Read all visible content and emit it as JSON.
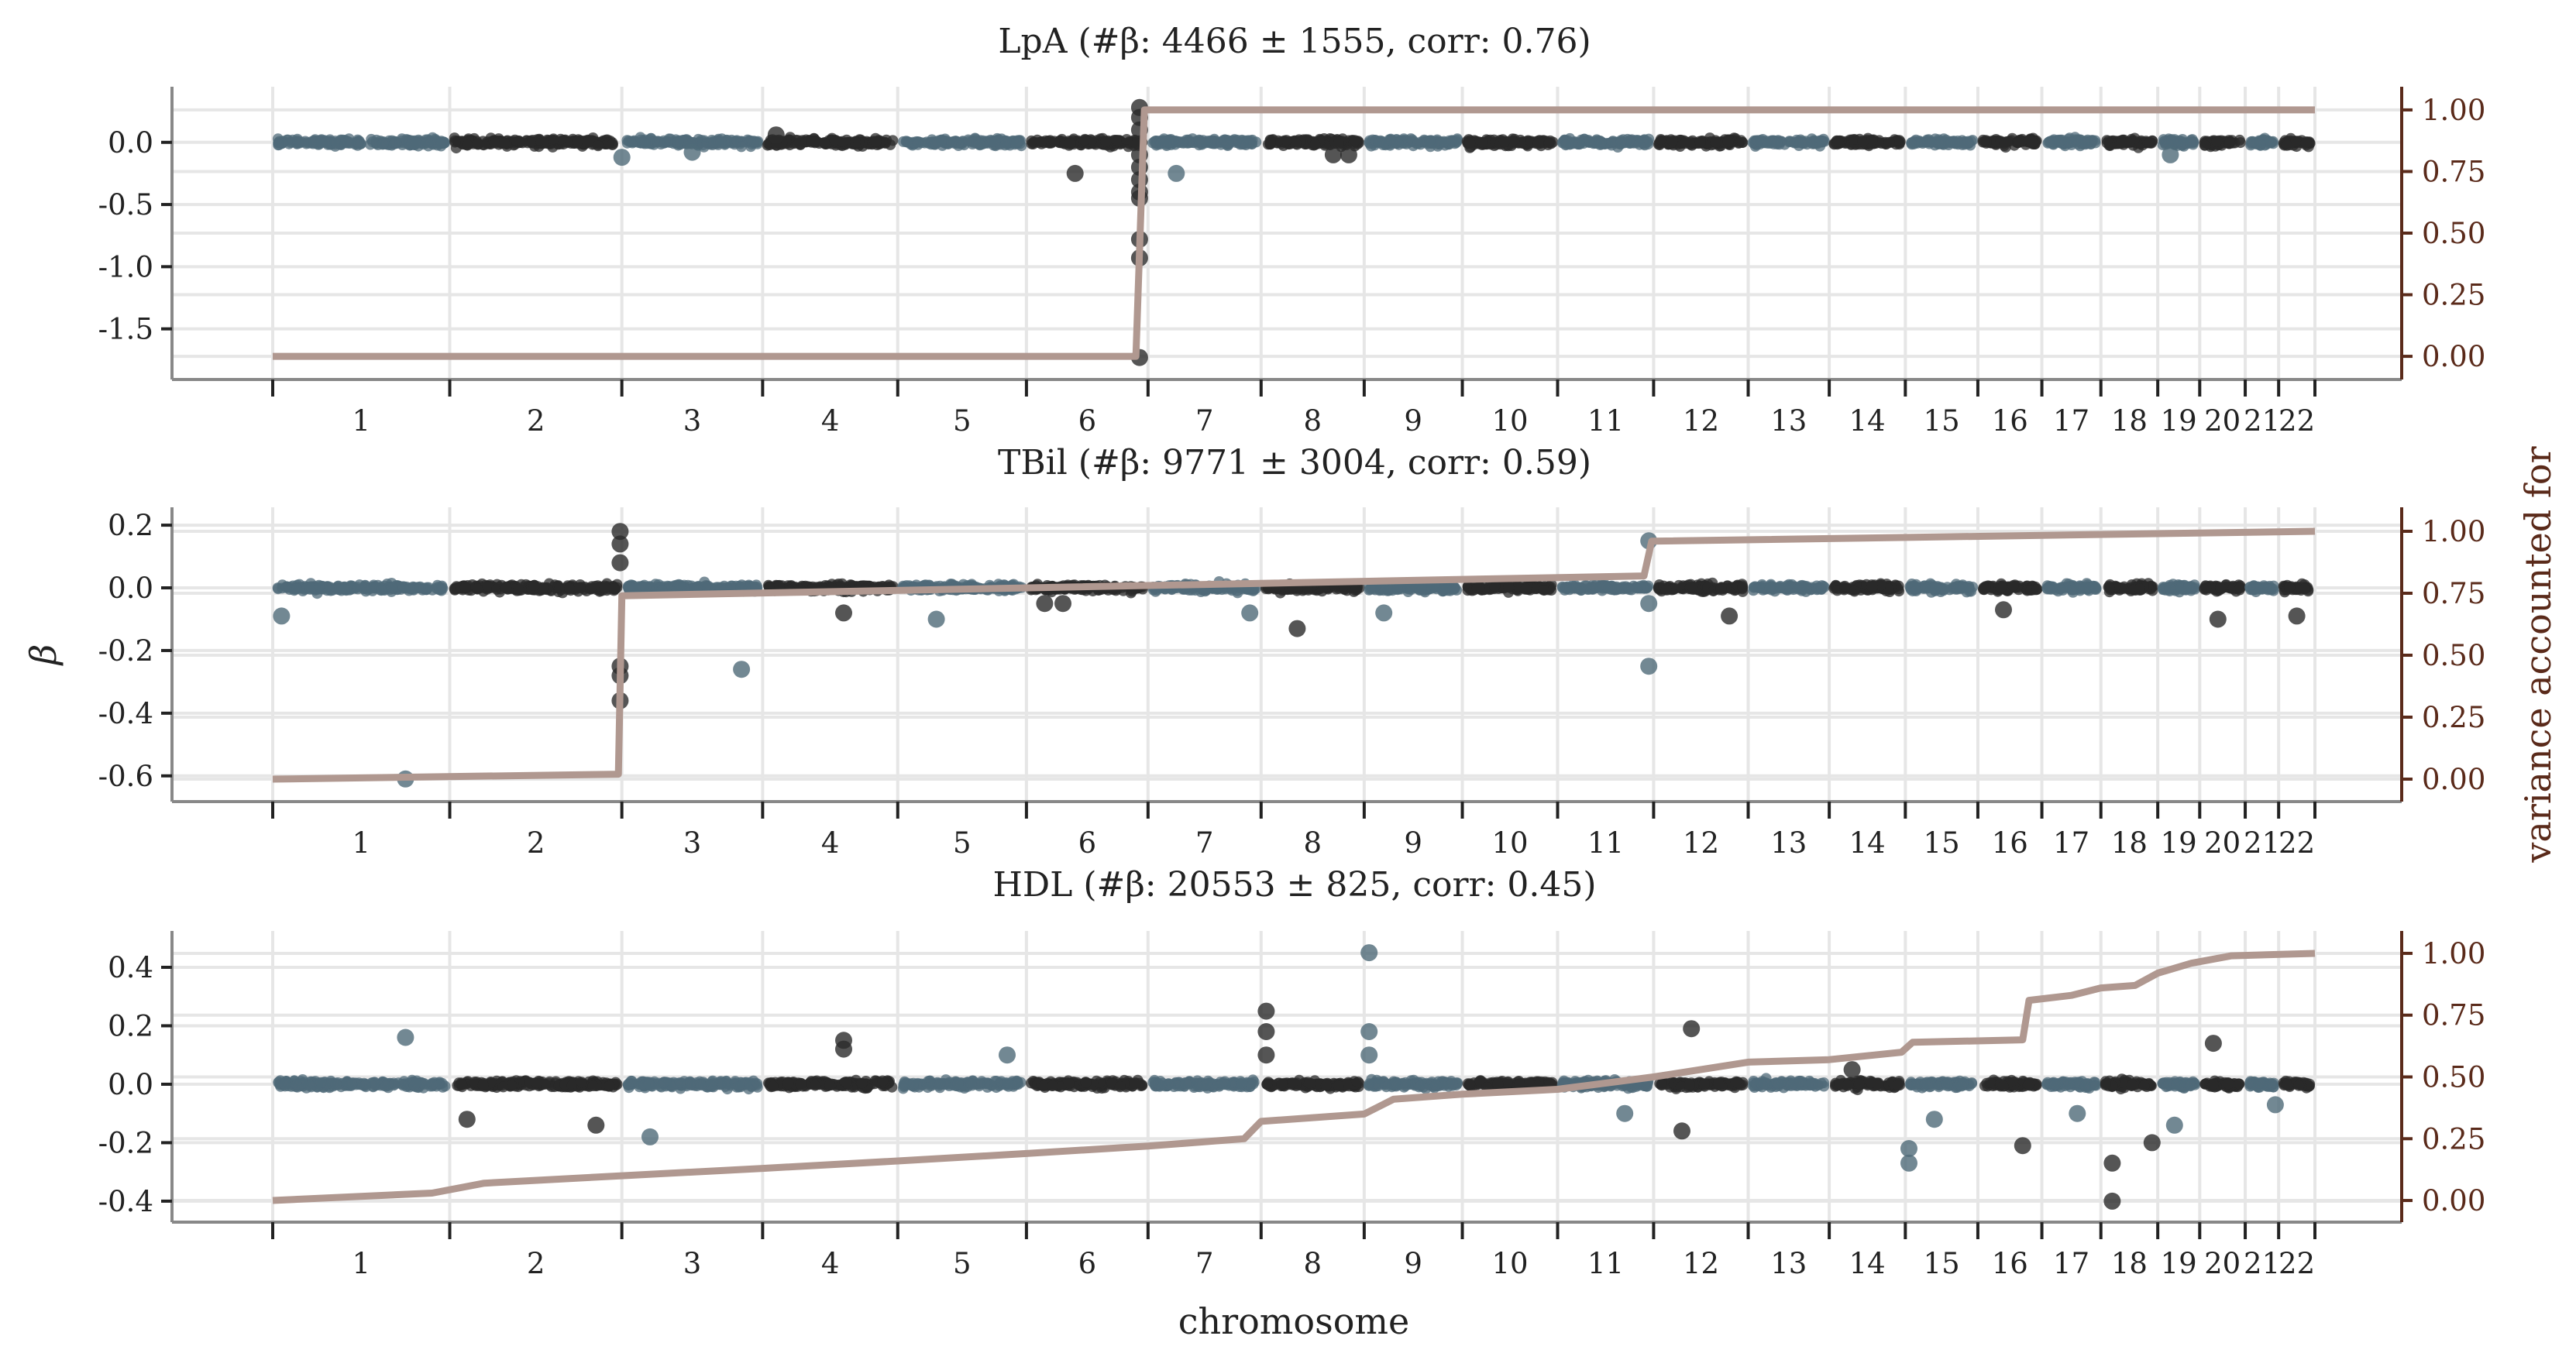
{
  "chart_data": [
    {
      "type": "scatter",
      "title": "LpA    (#β: 4466 ± 1555, corr: 0.76)",
      "trait": "LpA",
      "n_beta": "4466 ± 1555",
      "corr": 0.76,
      "ylim": [
        -1.82,
        0.36
      ],
      "yticks": [
        "0.0",
        "-0.5",
        "-1.0",
        "-1.5"
      ],
      "ytick_values": [
        0.0,
        -0.5,
        -1.0,
        -1.5
      ],
      "right_ylim": [
        -0.05,
        1.05
      ],
      "right_yticks": [
        "1.00",
        "0.75",
        "0.50",
        "0.25",
        "0.00"
      ],
      "right_ytick_values": [
        1.0,
        0.75,
        0.5,
        0.25,
        0.0
      ],
      "outliers": [
        {
          "chrom": 6,
          "pos": 0.93,
          "beta": 0.28
        },
        {
          "chrom": 6,
          "pos": 0.93,
          "beta": 0.2
        },
        {
          "chrom": 6,
          "pos": 0.93,
          "beta": 0.1
        },
        {
          "chrom": 6,
          "pos": 0.93,
          "beta": -0.1
        },
        {
          "chrom": 6,
          "pos": 0.93,
          "beta": -0.2
        },
        {
          "chrom": 6,
          "pos": 0.93,
          "beta": -0.3
        },
        {
          "chrom": 6,
          "pos": 0.93,
          "beta": -0.4
        },
        {
          "chrom": 6,
          "pos": 0.93,
          "beta": -0.45
        },
        {
          "chrom": 6,
          "pos": 0.93,
          "beta": -0.78
        },
        {
          "chrom": 6,
          "pos": 0.93,
          "beta": -0.93
        },
        {
          "chrom": 6,
          "pos": 0.93,
          "beta": -1.73
        },
        {
          "chrom": 6,
          "pos": 0.4,
          "beta": -0.25
        },
        {
          "chrom": 7,
          "pos": 0.25,
          "beta": -0.25
        },
        {
          "chrom": 3,
          "pos": 0.0,
          "beta": -0.12
        },
        {
          "chrom": 3,
          "pos": 0.5,
          "beta": -0.08
        },
        {
          "chrom": 4,
          "pos": 0.1,
          "beta": 0.06
        },
        {
          "chrom": 8,
          "pos": 0.7,
          "beta": -0.1
        },
        {
          "chrom": 8,
          "pos": 0.85,
          "beta": -0.1
        },
        {
          "chrom": 19,
          "pos": 0.3,
          "beta": -0.1
        }
      ],
      "cumulative_variance": [
        {
          "chrom": 1,
          "pos": 0.0,
          "value": 0.0
        },
        {
          "chrom": 6,
          "pos": 0.9,
          "value": 0.0
        },
        {
          "chrom": 6,
          "pos": 0.97,
          "value": 1.0
        },
        {
          "chrom": 22,
          "pos": 1.0,
          "value": 1.0
        }
      ]
    },
    {
      "type": "scatter",
      "title": "TBil    (#β: 9771 ± 3004, corr: 0.59)",
      "trait": "TBil",
      "n_beta": "9771 ± 3004",
      "corr": 0.59,
      "ylim": [
        -0.65,
        0.22
      ],
      "yticks": [
        "0.2",
        "0.0",
        "-0.2",
        "-0.4",
        "-0.6"
      ],
      "ytick_values": [
        0.2,
        0.0,
        -0.2,
        -0.4,
        -0.6
      ],
      "right_ylim": [
        -0.05,
        1.05
      ],
      "right_yticks": [
        "1.00",
        "0.75",
        "0.50",
        "0.25",
        "0.00"
      ],
      "right_ytick_values": [
        1.0,
        0.75,
        0.5,
        0.25,
        0.0
      ],
      "outliers": [
        {
          "chrom": 1,
          "pos": 0.75,
          "beta": -0.61
        },
        {
          "chrom": 2,
          "pos": 0.99,
          "beta": 0.18
        },
        {
          "chrom": 2,
          "pos": 0.99,
          "beta": 0.14
        },
        {
          "chrom": 2,
          "pos": 0.99,
          "beta": 0.08
        },
        {
          "chrom": 2,
          "pos": 0.99,
          "beta": -0.25
        },
        {
          "chrom": 2,
          "pos": 0.99,
          "beta": -0.28
        },
        {
          "chrom": 2,
          "pos": 0.99,
          "beta": -0.36
        },
        {
          "chrom": 3,
          "pos": 0.85,
          "beta": -0.26
        },
        {
          "chrom": 11,
          "pos": 0.95,
          "beta": 0.15
        },
        {
          "chrom": 11,
          "pos": 0.95,
          "beta": -0.05
        },
        {
          "chrom": 11,
          "pos": 0.95,
          "beta": -0.25
        },
        {
          "chrom": 6,
          "pos": 0.15,
          "beta": -0.05
        },
        {
          "chrom": 6,
          "pos": 0.3,
          "beta": -0.05
        },
        {
          "chrom": 7,
          "pos": 0.9,
          "beta": -0.08
        },
        {
          "chrom": 5,
          "pos": 0.3,
          "beta": -0.1
        },
        {
          "chrom": 8,
          "pos": 0.35,
          "beta": -0.13
        },
        {
          "chrom": 1,
          "pos": 0.05,
          "beta": -0.09
        },
        {
          "chrom": 12,
          "pos": 0.8,
          "beta": -0.09
        },
        {
          "chrom": 20,
          "pos": 0.4,
          "beta": -0.1
        },
        {
          "chrom": 22,
          "pos": 0.5,
          "beta": -0.09
        },
        {
          "chrom": 4,
          "pos": 0.6,
          "beta": -0.08
        },
        {
          "chrom": 9,
          "pos": 0.2,
          "beta": -0.08
        },
        {
          "chrom": 16,
          "pos": 0.4,
          "beta": -0.07
        }
      ],
      "cumulative_variance": [
        {
          "chrom": 1,
          "pos": 0.0,
          "value": 0.0
        },
        {
          "chrom": 2,
          "pos": 0.98,
          "value": 0.02
        },
        {
          "chrom": 3,
          "pos": 0.0,
          "value": 0.74
        },
        {
          "chrom": 11,
          "pos": 0.9,
          "value": 0.82
        },
        {
          "chrom": 11,
          "pos": 0.98,
          "value": 0.96
        },
        {
          "chrom": 22,
          "pos": 1.0,
          "value": 1.0
        }
      ]
    },
    {
      "type": "scatter",
      "title": "HDL    (#β: 20553 ± 825, corr: 0.45)",
      "trait": "HDL",
      "n_beta": "20553 ± 825",
      "corr": 0.45,
      "ylim": [
        -0.44,
        0.49
      ],
      "yticks": [
        "0.4",
        "0.2",
        "0.0",
        "-0.2",
        "-0.4"
      ],
      "ytick_values": [
        0.4,
        0.2,
        0.0,
        -0.2,
        -0.4
      ],
      "right_ylim": [
        -0.05,
        1.05
      ],
      "right_yticks": [
        "1.00",
        "0.75",
        "0.50",
        "0.25",
        "0.00"
      ],
      "right_ytick_values": [
        1.0,
        0.75,
        0.5,
        0.25,
        0.0
      ],
      "outliers": [
        {
          "chrom": 9,
          "pos": 0.05,
          "beta": 0.45
        },
        {
          "chrom": 8,
          "pos": 0.05,
          "beta": 0.25
        },
        {
          "chrom": 8,
          "pos": 0.05,
          "beta": 0.18
        },
        {
          "chrom": 8,
          "pos": 0.05,
          "beta": 0.1
        },
        {
          "chrom": 9,
          "pos": 0.05,
          "beta": 0.18
        },
        {
          "chrom": 9,
          "pos": 0.05,
          "beta": 0.1
        },
        {
          "chrom": 4,
          "pos": 0.6,
          "beta": 0.15
        },
        {
          "chrom": 4,
          "pos": 0.6,
          "beta": 0.12
        },
        {
          "chrom": 1,
          "pos": 0.75,
          "beta": 0.16
        },
        {
          "chrom": 5,
          "pos": 0.85,
          "beta": 0.1
        },
        {
          "chrom": 12,
          "pos": 0.4,
          "beta": 0.19
        },
        {
          "chrom": 20,
          "pos": 0.3,
          "beta": 0.14
        },
        {
          "chrom": 3,
          "pos": 0.2,
          "beta": -0.18
        },
        {
          "chrom": 2,
          "pos": 0.85,
          "beta": -0.14
        },
        {
          "chrom": 15,
          "pos": 0.05,
          "beta": -0.22
        },
        {
          "chrom": 15,
          "pos": 0.05,
          "beta": -0.27
        },
        {
          "chrom": 15,
          "pos": 0.4,
          "beta": -0.12
        },
        {
          "chrom": 16,
          "pos": 0.7,
          "beta": -0.21
        },
        {
          "chrom": 18,
          "pos": 0.2,
          "beta": -0.27
        },
        {
          "chrom": 18,
          "pos": 0.2,
          "beta": -0.4
        },
        {
          "chrom": 18,
          "pos": 0.9,
          "beta": -0.2
        },
        {
          "chrom": 19,
          "pos": 0.4,
          "beta": -0.14
        },
        {
          "chrom": 12,
          "pos": 0.3,
          "beta": -0.16
        },
        {
          "chrom": 2,
          "pos": 0.1,
          "beta": -0.12
        },
        {
          "chrom": 14,
          "pos": 0.3,
          "beta": 0.05
        },
        {
          "chrom": 11,
          "pos": 0.7,
          "beta": -0.1
        },
        {
          "chrom": 17,
          "pos": 0.6,
          "beta": -0.1
        },
        {
          "chrom": 21,
          "pos": 0.9,
          "beta": -0.07
        }
      ],
      "cumulative_variance": [
        {
          "chrom": 1,
          "pos": 0.0,
          "value": 0.0
        },
        {
          "chrom": 1,
          "pos": 0.9,
          "value": 0.03
        },
        {
          "chrom": 2,
          "pos": 0.2,
          "value": 0.07
        },
        {
          "chrom": 3,
          "pos": 0.0,
          "value": 0.1
        },
        {
          "chrom": 4,
          "pos": 0.0,
          "value": 0.13
        },
        {
          "chrom": 5,
          "pos": 0.0,
          "value": 0.16
        },
        {
          "chrom": 6,
          "pos": 0.0,
          "value": 0.19
        },
        {
          "chrom": 7,
          "pos": 0.0,
          "value": 0.22
        },
        {
          "chrom": 7,
          "pos": 0.85,
          "value": 0.25
        },
        {
          "chrom": 8,
          "pos": 0.0,
          "value": 0.32
        },
        {
          "chrom": 9,
          "pos": 0.0,
          "value": 0.35
        },
        {
          "chrom": 9,
          "pos": 0.3,
          "value": 0.41
        },
        {
          "chrom": 10,
          "pos": 0.0,
          "value": 0.43
        },
        {
          "chrom": 11,
          "pos": 0.0,
          "value": 0.45
        },
        {
          "chrom": 12,
          "pos": 0.0,
          "value": 0.5
        },
        {
          "chrom": 13,
          "pos": 0.0,
          "value": 0.56
        },
        {
          "chrom": 14,
          "pos": 0.0,
          "value": 0.57
        },
        {
          "chrom": 14,
          "pos": 0.95,
          "value": 0.6
        },
        {
          "chrom": 15,
          "pos": 0.1,
          "value": 0.64
        },
        {
          "chrom": 16,
          "pos": 0.7,
          "value": 0.65
        },
        {
          "chrom": 16,
          "pos": 0.8,
          "value": 0.81
        },
        {
          "chrom": 17,
          "pos": 0.5,
          "value": 0.83
        },
        {
          "chrom": 18,
          "pos": 0.0,
          "value": 0.86
        },
        {
          "chrom": 18,
          "pos": 0.6,
          "value": 0.87
        },
        {
          "chrom": 19,
          "pos": 0.0,
          "value": 0.92
        },
        {
          "chrom": 19,
          "pos": 0.8,
          "value": 0.96
        },
        {
          "chrom": 20,
          "pos": 0.7,
          "value": 0.99
        },
        {
          "chrom": 22,
          "pos": 1.0,
          "value": 1.0
        }
      ]
    }
  ],
  "chromosomes": {
    "labels": [
      "1",
      "2",
      "3",
      "4",
      "5",
      "6",
      "7",
      "8",
      "9",
      "10",
      "11",
      "12",
      "13",
      "14",
      "15",
      "16",
      "17",
      "18",
      "19",
      "20",
      "21",
      "22"
    ],
    "relative_lengths": [
      249,
      242,
      198,
      190,
      181,
      171,
      159,
      145,
      138,
      134,
      135,
      133,
      114,
      107,
      102,
      90,
      83,
      80,
      59,
      64,
      47,
      51
    ]
  },
  "axis_labels": {
    "y_left": "β",
    "y_right": "variance accounted for",
    "x": "chromosome"
  },
  "colors": {
    "chrom_odd": "#4f6a78",
    "chrom_even": "#2a2a2a",
    "cumulative_line": "#b09890",
    "right_axis": "#5a2a1a",
    "left_axis": "#888888",
    "grid": "#e6e6e6"
  }
}
